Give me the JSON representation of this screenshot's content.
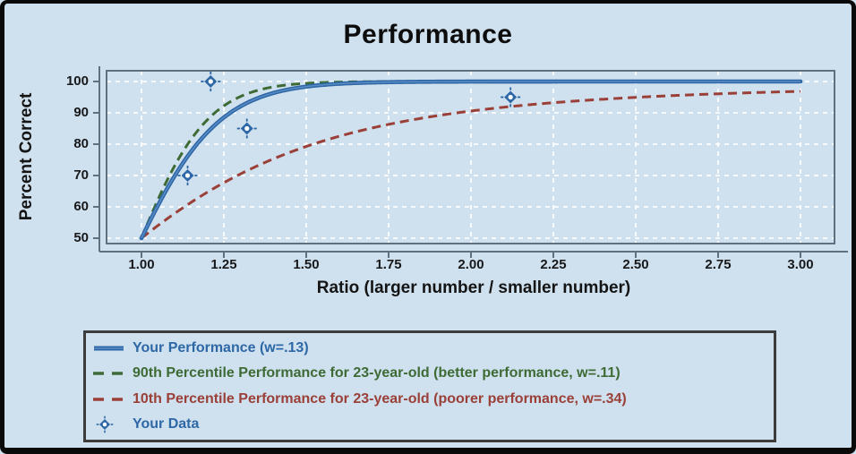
{
  "title": "Performance",
  "x_axis": {
    "label": "Ratio (larger number / smaller number)",
    "tick_labels": [
      "1.00",
      "1.25",
      "1.50",
      "1.75",
      "2.00",
      "2.25",
      "2.50",
      "2.75",
      "3.00"
    ],
    "min": 1.0,
    "max": 3.0
  },
  "y_axis": {
    "label": "Percent Correct",
    "tick_labels": [
      "100",
      "90",
      "80",
      "70",
      "60",
      "50"
    ],
    "min": 50,
    "max": 100
  },
  "legend": {
    "items": [
      {
        "label": "Your Performance (w=.13)",
        "swatch": "solid-line",
        "color": "#2d67a6"
      },
      {
        "label": "90th Percentile Performance for 23-year-old (better performance, w=.11)",
        "swatch": "dashed-line",
        "color": "#3e6b35"
      },
      {
        "label": "10th Percentile Performance for 23-year-old (poorer performance, w=.34)",
        "swatch": "dashed-line",
        "color": "#9a4038"
      },
      {
        "label": "Your Data",
        "swatch": "diamond",
        "color": "#2d67a6"
      }
    ]
  },
  "colors": {
    "background": "#cfe0ee",
    "frame_border": "#0a0a0a",
    "plot_border": "#5f7080",
    "gridline": "#ffffff",
    "blue": "#2d67a6",
    "blue_highlight": "#5b8cc6",
    "green": "#3e6b35",
    "red": "#9a4038",
    "text": "#141414",
    "legend_border": "#3c3c3c"
  },
  "chart_data": {
    "type": "line",
    "title": "Performance",
    "xlabel": "Ratio (larger number / smaller number)",
    "ylabel": "Percent Correct",
    "xlim": [
      1.0,
      3.0
    ],
    "ylim": [
      50,
      100
    ],
    "grid": true,
    "legend_position": "bottom",
    "model": "percent_correct = 100 * NormalCDF((ratio - 1) / (w * sqrt(1 + ratio^2)))",
    "x_samples": [
      1.0,
      1.1,
      1.2,
      1.3,
      1.4,
      1.5,
      1.6,
      1.7,
      1.8,
      1.9,
      2.0,
      2.1,
      2.2,
      2.3,
      2.4,
      2.5,
      2.6,
      2.7,
      2.8,
      2.9,
      3.0
    ],
    "series": [
      {
        "name": "Your Performance (w=.13)",
        "type": "line",
        "style": "solid",
        "color": "#2d67a6",
        "w": 0.13,
        "values": [
          50,
          69.8,
          83.8,
          92.0,
          96.3,
          98.4,
          99.3,
          99.7,
          99.9,
          99.9,
          100,
          100,
          100,
          100,
          100,
          100,
          100,
          100,
          100,
          100,
          100
        ]
      },
      {
        "name": "90th Percentile Performance for 23-year-old (better performance, w=.11)",
        "type": "line",
        "style": "dashed",
        "color": "#3e6b35",
        "w": 0.11,
        "values": [
          50,
          73.0,
          87.8,
          95.2,
          98.3,
          99.4,
          99.8,
          99.9,
          100,
          100,
          100,
          100,
          100,
          100,
          100,
          100,
          100,
          100,
          100,
          100,
          100
        ]
      },
      {
        "name": "10th Percentile Performance for 23-year-old (poorer performance, w=.34)",
        "type": "line",
        "style": "dashed",
        "color": "#9a4038",
        "w": 0.34,
        "values": [
          50,
          57.8,
          64.7,
          70.5,
          75.3,
          79.3,
          82.5,
          85.2,
          87.4,
          89.1,
          90.6,
          91.8,
          92.8,
          93.6,
          94.3,
          94.9,
          95.4,
          95.9,
          96.3,
          96.6,
          96.9
        ]
      },
      {
        "name": "Your Data",
        "type": "scatter",
        "marker": "diamond",
        "color": "#2d67a6",
        "points": [
          {
            "x": 1.14,
            "y": 70
          },
          {
            "x": 1.21,
            "y": 100
          },
          {
            "x": 1.32,
            "y": 85
          },
          {
            "x": 2.12,
            "y": 95
          }
        ]
      }
    ]
  }
}
